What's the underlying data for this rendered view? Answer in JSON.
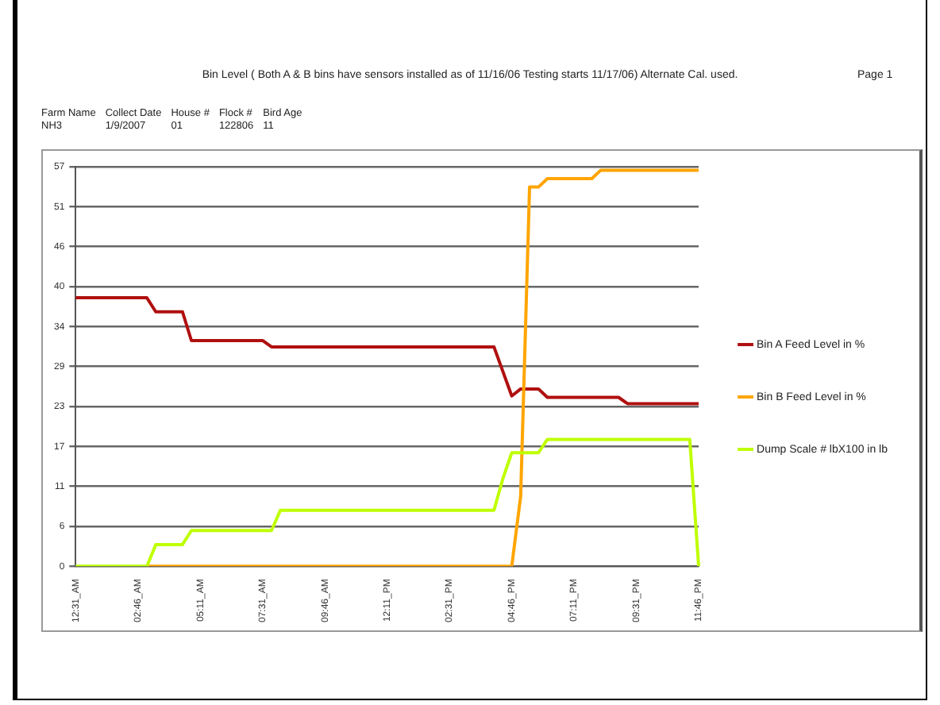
{
  "chart_data": {
    "type": "line",
    "title": "Bin Level ( Both A & B bins have sensors installed as of 11/16/06 Testing starts 11/17/06)  Alternate Cal. used.",
    "annotations": [
      "Page 1",
      "Farm Name",
      "Collect Date",
      "House #",
      "Flock #",
      "Bird Age",
      "NH3",
      "1/9/2007",
      "01",
      "122806",
      "11"
    ],
    "categories": [
      "12:31_AM",
      null,
      null,
      null,
      null,
      null,
      null,
      "02:46_AM",
      null,
      null,
      null,
      null,
      null,
      null,
      "05:11_AM",
      null,
      null,
      null,
      null,
      null,
      null,
      "07:31_AM",
      null,
      null,
      null,
      null,
      null,
      null,
      "09:46_AM",
      null,
      null,
      null,
      null,
      null,
      null,
      "12:11_PM",
      null,
      null,
      null,
      null,
      null,
      null,
      "02:31_PM",
      null,
      null,
      null,
      null,
      null,
      null,
      "04:46_PM",
      null,
      null,
      null,
      null,
      null,
      null,
      "07:11_PM",
      null,
      null,
      null,
      null,
      null,
      null,
      "09:31_PM",
      null,
      null,
      null,
      null,
      null,
      null,
      "11:46_PM"
    ],
    "series": [
      {
        "name": "Bin A Feed Level in %",
        "color": "#b01010",
        "values": [
          38.3,
          38.3,
          38.3,
          38.3,
          38.3,
          38.3,
          38.3,
          38.3,
          38.3,
          36.3,
          36.3,
          36.3,
          36.3,
          32.2,
          32.2,
          32.2,
          32.2,
          32.2,
          32.2,
          32.2,
          32.2,
          32.2,
          31.3,
          31.3,
          31.3,
          31.3,
          31.3,
          31.3,
          31.3,
          31.3,
          31.3,
          31.3,
          31.3,
          31.3,
          31.3,
          31.3,
          31.3,
          31.3,
          31.3,
          31.3,
          31.3,
          31.3,
          31.3,
          31.3,
          31.3,
          31.3,
          31.3,
          31.3,
          27.8,
          24.3,
          25.3,
          25.3,
          25.3,
          24.1,
          24.1,
          24.1,
          24.1,
          24.1,
          24.1,
          24.1,
          24.1,
          24.1,
          23.2,
          23.2,
          23.2,
          23.2,
          23.2,
          23.2,
          23.2,
          23.2,
          23.2
        ]
      },
      {
        "name": "Bin B Feed Level in %",
        "color": "#ffa500",
        "values": [
          null,
          null,
          null,
          null,
          null,
          null,
          null,
          null,
          0,
          0,
          0,
          0,
          0,
          0,
          0,
          0,
          0,
          0,
          0,
          0,
          0,
          0,
          0,
          0,
          0,
          0,
          0,
          0,
          0,
          0,
          0,
          0,
          0,
          0,
          0,
          0,
          0,
          0,
          0,
          0,
          0,
          0,
          0,
          0,
          0,
          0,
          0,
          0,
          0,
          0,
          10,
          54.1,
          54.1,
          55.3,
          55.3,
          55.3,
          55.3,
          55.3,
          55.3,
          56.5,
          56.5,
          56.5,
          56.5,
          56.5,
          56.5,
          56.5,
          56.5,
          56.5,
          56.5,
          56.5,
          56.5
        ]
      },
      {
        "name": "Dump Scale # lbX100 in lb",
        "color": "#bfff00",
        "values": [
          0,
          0,
          0,
          0,
          0,
          0,
          0,
          0,
          0,
          3.1,
          3.1,
          3.1,
          3.1,
          5.1,
          5.1,
          5.1,
          5.1,
          5.1,
          5.1,
          5.1,
          5.1,
          5.1,
          5.1,
          8.0,
          8.0,
          8.0,
          8.0,
          8.0,
          8.0,
          8.0,
          8.0,
          8.0,
          8.0,
          8.0,
          8.0,
          8.0,
          8.0,
          8.0,
          8.0,
          8.0,
          8.0,
          8.0,
          8.0,
          8.0,
          8.0,
          8.0,
          8.0,
          8.0,
          12.5,
          16.2,
          16.2,
          16.2,
          16.2,
          18.1,
          18.1,
          18.1,
          18.1,
          18.1,
          18.1,
          18.1,
          18.1,
          18.1,
          18.1,
          18.1,
          18.1,
          18.1,
          18.1,
          18.1,
          18.1,
          18.1,
          0
        ]
      }
    ],
    "ylim": [
      0,
      57
    ],
    "yticks": [
      0,
      {
        "value": 5.7,
        "label": "6"
      },
      {
        "value": 11.4,
        "label": "11"
      },
      {
        "value": 17.1,
        "label": "17"
      },
      {
        "value": 22.8,
        "label": "23"
      },
      {
        "value": 28.5,
        "label": "29"
      },
      {
        "value": 34.2,
        "label": "34"
      },
      {
        "value": 39.9,
        "label": "40"
      },
      {
        "value": 45.6,
        "label": "46"
      },
      {
        "value": 51.3,
        "label": "51"
      },
      57
    ],
    "grid": "y",
    "legend": "right",
    "marker": "none",
    "line_style": "solid"
  }
}
